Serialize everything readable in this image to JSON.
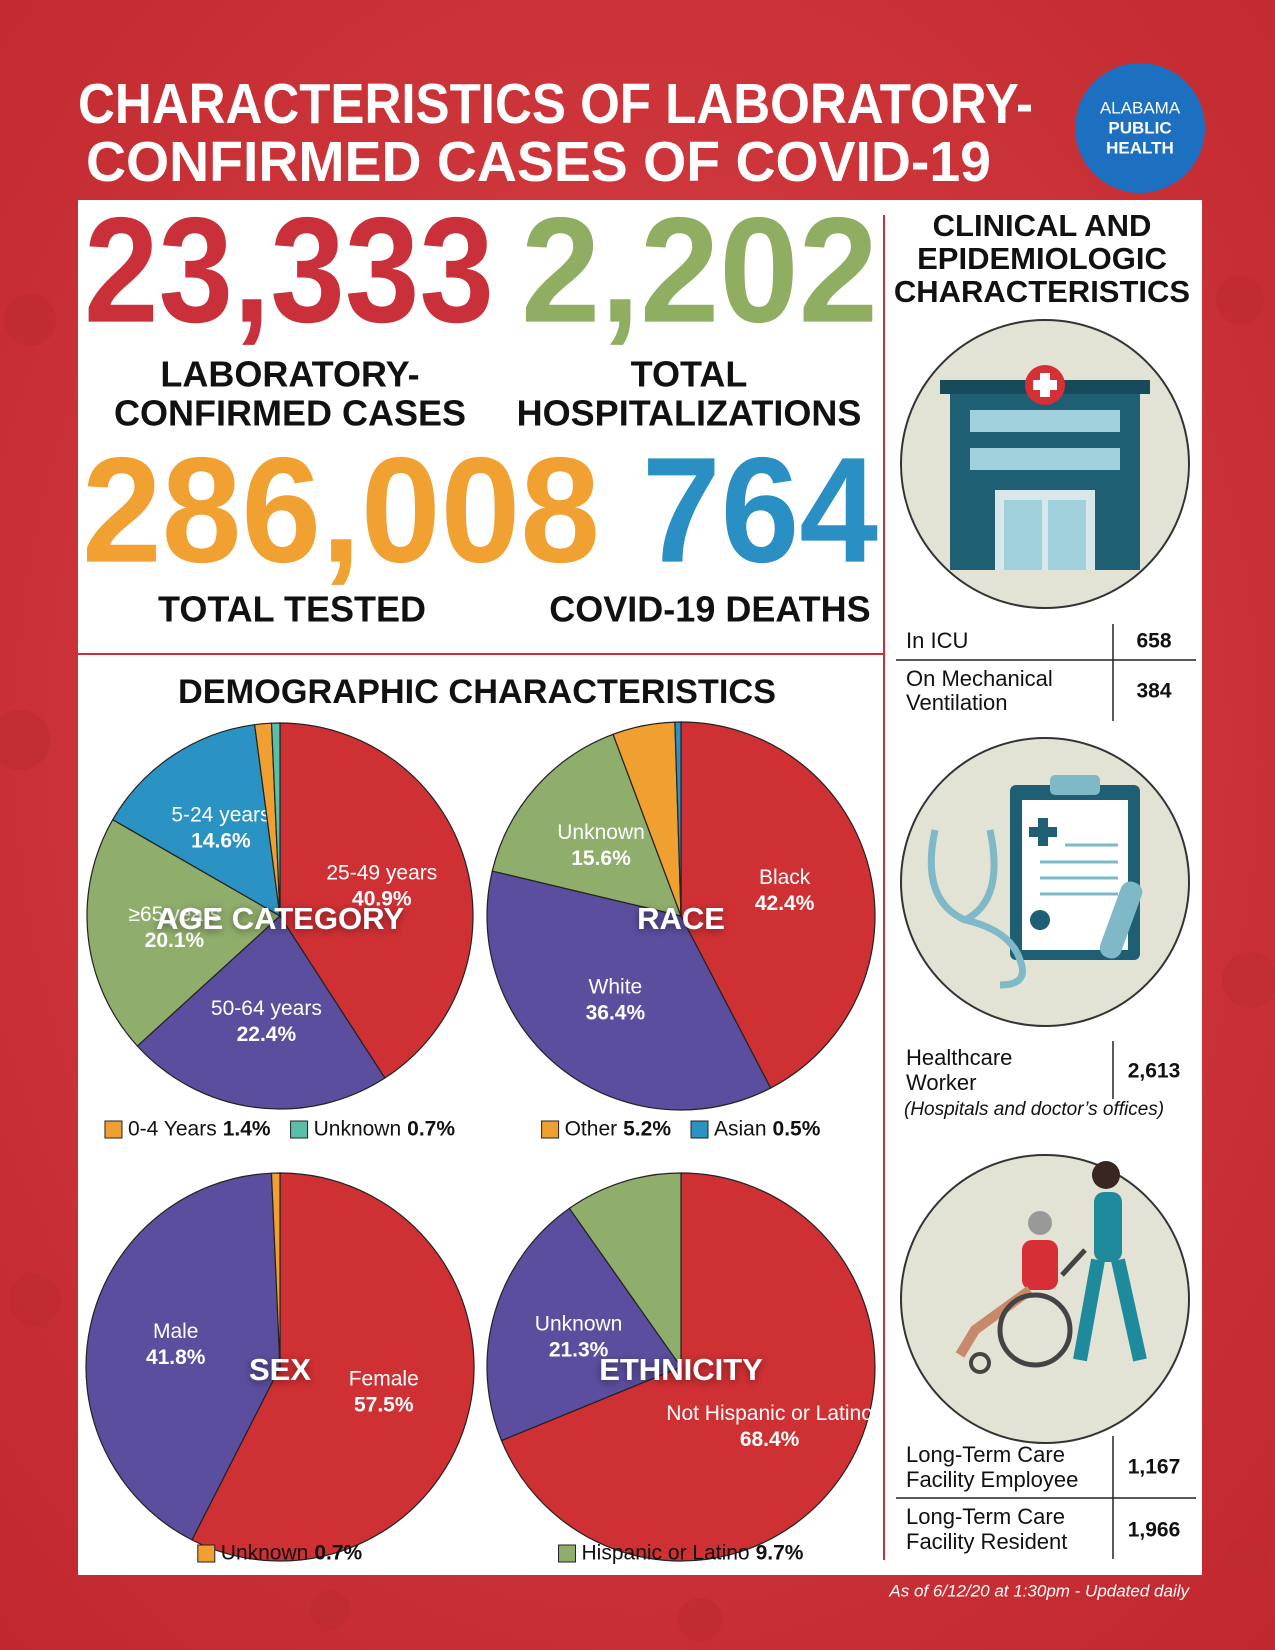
{
  "header": {
    "title": [
      "CHARACTERISTICS OF LABORATORY-",
      "CONFIRMED CASES OF COVID-19"
    ],
    "logo": [
      "ALABAMA",
      "PUBLIC",
      "HEALTH"
    ]
  },
  "stats": [
    {
      "value": "23,333",
      "label": [
        "LABORATORY-",
        "CONFIRMED CASES"
      ],
      "color": "#c9303a"
    },
    {
      "value": "2,202",
      "label": [
        "TOTAL",
        "HOSPITALIZATIONS"
      ],
      "color": "#8fae62"
    },
    {
      "value": "286,008",
      "label": [
        "TOTAL TESTED"
      ],
      "color": "#f0a132"
    },
    {
      "value": "764",
      "label": [
        "COVID-19 DEATHS"
      ],
      "color": "#2a8fc3"
    }
  ],
  "demographics_title": "DEMOGRAPHIC CHARACTERISTICS",
  "chart_data": [
    {
      "type": "pie",
      "title": "AGE CATEGORY",
      "categories": [
        "25-49 years",
        "50-64 years",
        "≥65 years",
        "5-24 years",
        "0-4 Years",
        "Unknown"
      ],
      "values": [
        40.9,
        22.4,
        20.1,
        14.6,
        1.4,
        0.7
      ],
      "value_labels": [
        "40.9%",
        "22.4%",
        "20.1%",
        "14.6%",
        "1.4%",
        "0.7%"
      ],
      "colors": [
        "#cf3034",
        "#5b4e9e",
        "#8fad6b",
        "#2b92c4",
        "#f0a030",
        "#5bbfa8"
      ]
    },
    {
      "type": "pie",
      "title": "RACE",
      "categories": [
        "Black",
        "White",
        "Unknown",
        "Other",
        "Asian"
      ],
      "values": [
        42.4,
        36.4,
        15.6,
        5.2,
        0.5
      ],
      "value_labels": [
        "42.4%",
        "36.4%",
        "15.6%",
        "5.2%",
        "0.5%"
      ],
      "colors": [
        "#cf3034",
        "#5b4e9e",
        "#8fad6b",
        "#f0a030",
        "#2b92c4"
      ]
    },
    {
      "type": "pie",
      "title": "SEX",
      "categories": [
        "Female",
        "Male",
        "Unknown"
      ],
      "values": [
        57.5,
        41.8,
        0.7
      ],
      "value_labels": [
        "57.5%",
        "41.8%",
        "0.7%"
      ],
      "colors": [
        "#cf3034",
        "#5b4e9e",
        "#f0a030"
      ]
    },
    {
      "type": "pie",
      "title": "ETHNICITY",
      "categories": [
        "Not Hispanic or Latino",
        "Unknown",
        "Hispanic or Latino"
      ],
      "values": [
        68.4,
        21.3,
        9.7
      ],
      "value_labels": [
        "68.4%",
        "21.3%",
        "9.7%"
      ],
      "colors": [
        "#cf3034",
        "#5b4e9e",
        "#8fad6b"
      ]
    }
  ],
  "clinical": {
    "title": [
      "CLINICAL AND",
      "EPIDEMIOLOGIC",
      "CHARACTERISTICS"
    ],
    "rows": [
      {
        "label": [
          "In ICU"
        ],
        "value": "658"
      },
      {
        "label": [
          "On Mechanical",
          "Ventilation"
        ],
        "value": "384"
      },
      {
        "label": [
          "Healthcare",
          "Worker"
        ],
        "note": "(Hospitals and doctor’s offices)",
        "value": "2,613"
      },
      {
        "label": [
          "Long-Term Care",
          "Facility Employee"
        ],
        "value": "1,167"
      },
      {
        "label": [
          "Long-Term Care",
          "Facility Resident"
        ],
        "value": "1,966"
      }
    ]
  },
  "footer": "As of 6/12/20 at 1:30pm - Updated daily"
}
